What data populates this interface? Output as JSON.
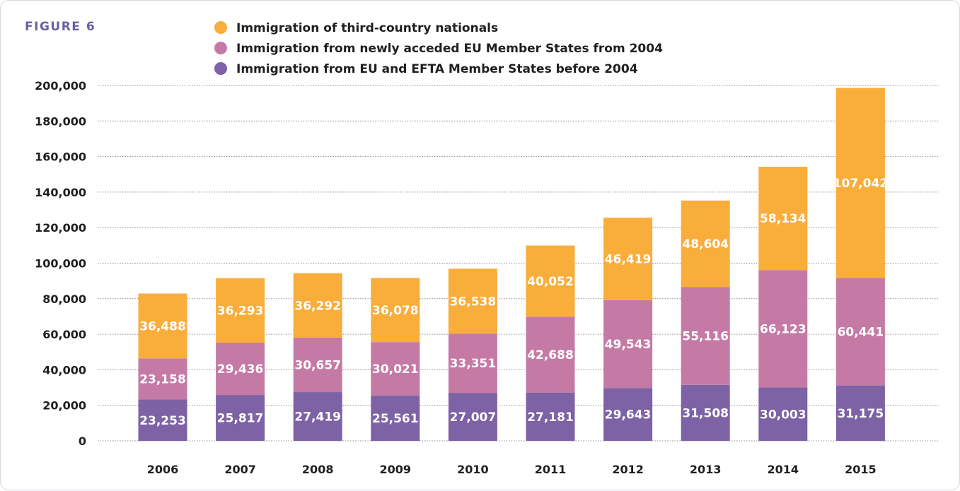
{
  "figure_label": "FIGURE 6",
  "colors": {
    "figure_label": "#6a5fa3",
    "third_country": "#f9ad3b",
    "new_eu": "#c57aa6",
    "old_eu": "#7d62a6"
  },
  "legend": [
    {
      "label": "Immigration of third-country nationals",
      "color": "#f9ad3b"
    },
    {
      "label": "Immigration from newly acceded EU Member States from 2004",
      "color": "#c57aa6"
    },
    {
      "label": "Immigration from EU and EFTA Member States before 2004",
      "color": "#7d62a6"
    }
  ],
  "chart_data": {
    "type": "bar",
    "stacked": true,
    "title": "",
    "xlabel": "",
    "ylabel": "",
    "categories": [
      "2006",
      "2007",
      "2008",
      "2009",
      "2010",
      "2011",
      "2012",
      "2013",
      "2014",
      "2015"
    ],
    "series": [
      {
        "name": "Immigration from EU and EFTA Member States before 2004",
        "color": "#7d62a6",
        "values": [
          23253,
          25817,
          27419,
          25561,
          27007,
          27181,
          29643,
          31508,
          30003,
          31175
        ],
        "labels": [
          "23,253",
          "25,817",
          "27,419",
          "25,561",
          "27,007",
          "27,181",
          "29,643",
          "31,508",
          "30,003",
          "31,175"
        ]
      },
      {
        "name": "Immigration from newly acceded EU Member States from 2004",
        "color": "#c57aa6",
        "values": [
          23158,
          29436,
          30657,
          30021,
          33351,
          42688,
          49543,
          55116,
          66123,
          60441
        ],
        "labels": [
          "23,158",
          "29,436",
          "30,657",
          "30,021",
          "33,351",
          "42,688",
          "49,543",
          "55,116",
          "66,123",
          "60,441"
        ]
      },
      {
        "name": "Immigration of third-country nationals",
        "color": "#f9ad3b",
        "values": [
          36488,
          36293,
          36292,
          36078,
          36538,
          40052,
          46419,
          48604,
          58134,
          107042
        ],
        "labels": [
          "36,488",
          "36,293",
          "36,292",
          "36,078",
          "36,538",
          "40,052",
          "46,419",
          "48,604",
          "58,134",
          "107,042"
        ]
      }
    ],
    "ylim": [
      0,
      200000
    ],
    "yticks": [
      0,
      20000,
      40000,
      60000,
      80000,
      100000,
      120000,
      140000,
      160000,
      180000,
      200000
    ],
    "ytick_labels": [
      "0",
      "20,000",
      "40,000",
      "60,000",
      "80,000",
      "100,000",
      "120,000",
      "140,000",
      "160,000",
      "180,000",
      "200,000"
    ],
    "grid": true,
    "legend_position": "top"
  }
}
